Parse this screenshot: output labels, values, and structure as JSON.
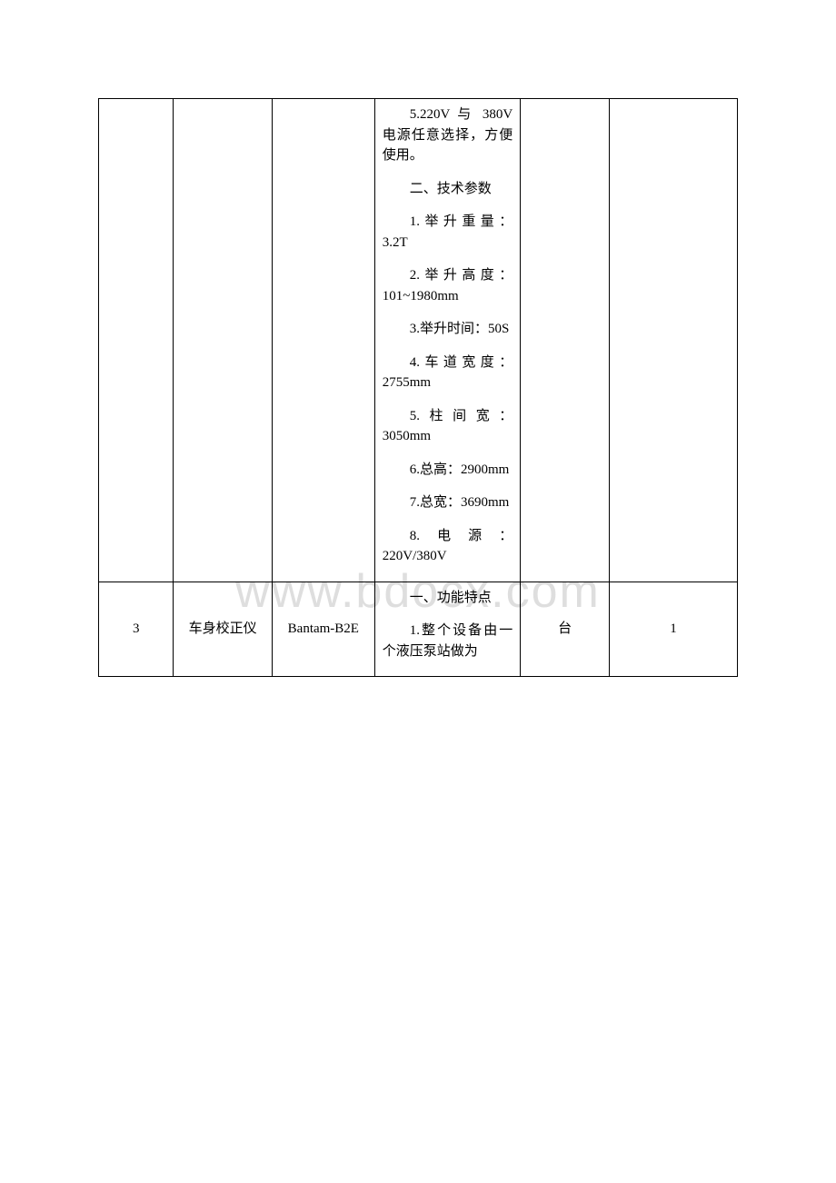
{
  "watermark": "www.bdocx.com",
  "table": {
    "rows": [
      {
        "col1": "",
        "col2": "",
        "col3": "",
        "desc_items": [
          "5.220V 与 380V电源任意选择，方便使用。",
          "二、技术参数",
          "1.举升重量：3.2T",
          "2.举升高度：101~1980mm",
          "3.举升时间：50S",
          "4.车道宽度：2755mm",
          "5.柱间宽：3050mm",
          "6.总高：2900mm",
          "7.总宽：3690mm",
          "8.电源：220V/380V"
        ],
        "col5": "",
        "col6": ""
      },
      {
        "col1": "3",
        "col2": "车身校正仪",
        "col3": "Bantam-B2E",
        "desc_items": [
          "一、功能特点",
          "1.整个设备由一个液压泵站做为"
        ],
        "col5": "台",
        "col6": "1"
      }
    ]
  }
}
